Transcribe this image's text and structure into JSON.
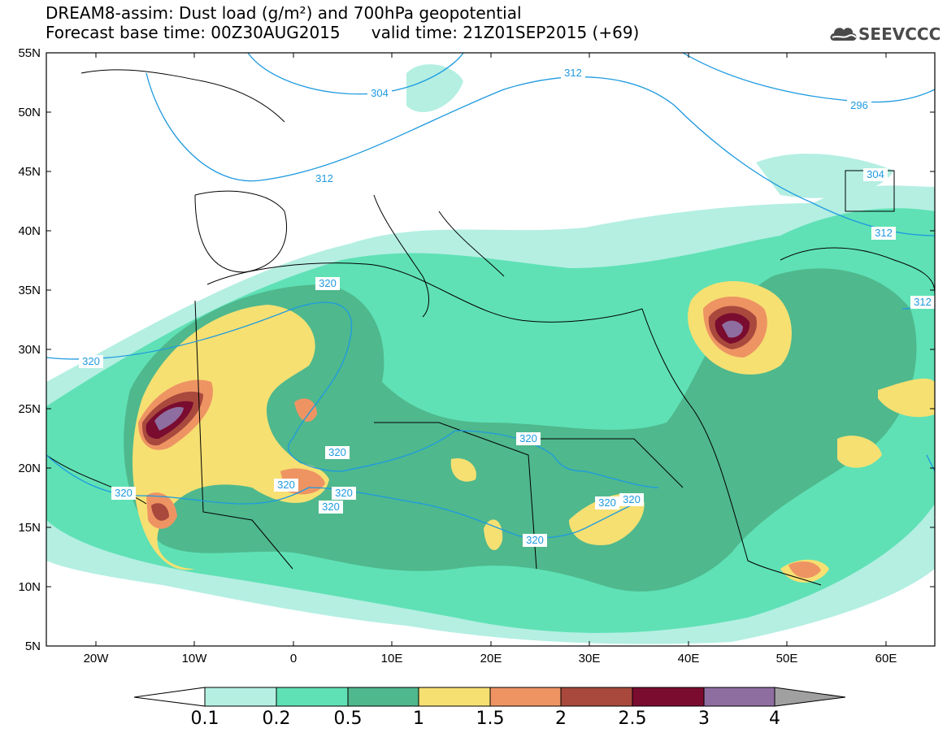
{
  "title_line1": "DREAM8-assim: Dust load (g/m²) and 700hPa geopotential",
  "title_line2": "Forecast base time: 00Z30AUG2015      valid time: 21Z01SEP2015 (+69)",
  "logo_text": "SEEVCCC",
  "lat_labels": [
    "55N",
    "50N",
    "45N",
    "40N",
    "35N",
    "30N",
    "25N",
    "20N",
    "15N",
    "10N",
    "5N"
  ],
  "lon_labels": [
    "20W",
    "10W",
    "0",
    "10E",
    "20E",
    "30E",
    "40E",
    "50E",
    "60E"
  ],
  "contour_labels": [
    "304",
    "312",
    "312",
    "296",
    "304",
    "312",
    "312",
    "320",
    "320",
    "320",
    "320",
    "320",
    "320",
    "320",
    "320",
    "320",
    "320",
    "320"
  ],
  "colorbar": {
    "labels": [
      "0.1",
      "0.2",
      "0.5",
      "1",
      "1.5",
      "2",
      "2.5",
      "3",
      "4"
    ],
    "colors": [
      "#b4efe2",
      "#5fe1b5",
      "#4fb88d",
      "#f6e072",
      "#ee9463",
      "#a9493d",
      "#7a0c2f",
      "#8e6ea0"
    ],
    "under_color": "#ffffff",
    "over_color": "#a0a0a0"
  }
}
